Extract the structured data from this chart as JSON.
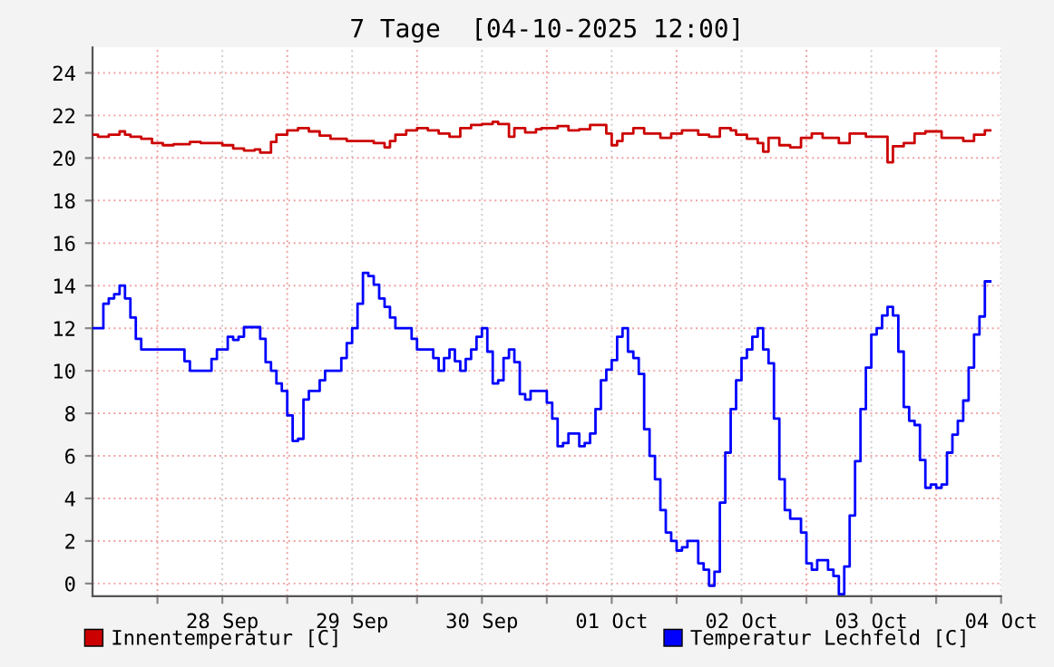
{
  "chart_data": {
    "type": "step",
    "title": "7 Tage  [04-10-2025 12:00]",
    "xlim": [
      "2025-09-27T12:00",
      "2025-10-04T12:00"
    ],
    "xticks": [
      {
        "value": "2025-09-28T00:00",
        "label": null
      },
      {
        "value": "2025-09-28T12:00",
        "label": "28 Sep"
      },
      {
        "value": "2025-09-29T00:00",
        "label": null
      },
      {
        "value": "2025-09-29T12:00",
        "label": "29 Sep"
      },
      {
        "value": "2025-09-30T00:00",
        "label": null
      },
      {
        "value": "2025-09-30T12:00",
        "label": "30 Sep"
      },
      {
        "value": "2025-10-01T00:00",
        "label": null
      },
      {
        "value": "2025-10-01T12:00",
        "label": "01 Oct"
      },
      {
        "value": "2025-10-02T00:00",
        "label": null
      },
      {
        "value": "2025-10-02T12:00",
        "label": "02 Oct"
      },
      {
        "value": "2025-10-03T00:00",
        "label": null
      },
      {
        "value": "2025-10-03T12:00",
        "label": "03 Oct"
      },
      {
        "value": "2025-10-04T00:00",
        "label": null
      },
      {
        "value": "2025-10-04T12:00",
        "label": "04 Oct"
      }
    ],
    "ylim": [
      -0.6,
      25.2
    ],
    "yticks": [
      0,
      2,
      4,
      6,
      8,
      10,
      12,
      14,
      16,
      18,
      20,
      22,
      24
    ],
    "grid": true,
    "legend": "bottom",
    "series": [
      {
        "name": "Innentemperatur [C]",
        "color": "#cc0000",
        "x": [
          "2025-09-27T12:00",
          "2025-09-27T13:00",
          "2025-09-27T15:00",
          "2025-09-27T17:00",
          "2025-09-27T18:00",
          "2025-09-27T19:00",
          "2025-09-27T21:00",
          "2025-09-27T23:00",
          "2025-09-28T01:00",
          "2025-09-28T03:00",
          "2025-09-28T06:00",
          "2025-09-28T08:00",
          "2025-09-28T12:00",
          "2025-09-28T14:00",
          "2025-09-28T16:00",
          "2025-09-28T18:00",
          "2025-09-28T19:00",
          "2025-09-28T21:00",
          "2025-09-28T22:00",
          "2025-09-29T00:00",
          "2025-09-29T02:00",
          "2025-09-29T04:00",
          "2025-09-29T06:00",
          "2025-09-29T08:00",
          "2025-09-29T11:00",
          "2025-09-29T16:00",
          "2025-09-29T18:00",
          "2025-09-29T19:00",
          "2025-09-29T20:00",
          "2025-09-29T22:00",
          "2025-09-30T00:00",
          "2025-09-30T02:00",
          "2025-09-30T04:00",
          "2025-09-30T06:00",
          "2025-09-30T08:00",
          "2025-09-30T10:00",
          "2025-09-30T12:00",
          "2025-09-30T14:00",
          "2025-09-30T15:00",
          "2025-09-30T17:00",
          "2025-09-30T18:00",
          "2025-09-30T20:00",
          "2025-09-30T22:00",
          "2025-09-30T23:00",
          "2025-10-01T02:00",
          "2025-10-01T04:00",
          "2025-10-01T06:00",
          "2025-10-01T08:00",
          "2025-10-01T11:00",
          "2025-10-01T12:00",
          "2025-10-01T13:00",
          "2025-10-01T14:00",
          "2025-10-01T16:00",
          "2025-10-01T18:00",
          "2025-10-01T21:00",
          "2025-10-01T23:00",
          "2025-10-02T01:00",
          "2025-10-02T04:00",
          "2025-10-02T06:00",
          "2025-10-02T08:00",
          "2025-10-02T10:00",
          "2025-10-02T11:00",
          "2025-10-02T13:00",
          "2025-10-02T15:00",
          "2025-10-02T16:00",
          "2025-10-02T17:00",
          "2025-10-02T19:00",
          "2025-10-02T21:00",
          "2025-10-02T23:00",
          "2025-10-03T01:00",
          "2025-10-03T03:00",
          "2025-10-03T06:00",
          "2025-10-03T08:00",
          "2025-10-03T11:00",
          "2025-10-03T15:00",
          "2025-10-03T16:00",
          "2025-10-03T18:00",
          "2025-10-03T20:00",
          "2025-10-03T22:00",
          "2025-10-04T01:00",
          "2025-10-04T05:00",
          "2025-10-04T07:00",
          "2025-10-04T09:00",
          "2025-10-04T10:00"
        ],
        "values": [
          21.1,
          21.0,
          21.1,
          21.25,
          21.1,
          21.0,
          20.9,
          20.7,
          20.6,
          20.65,
          20.75,
          20.7,
          20.6,
          20.45,
          20.35,
          20.4,
          20.25,
          20.75,
          21.1,
          21.3,
          21.4,
          21.25,
          21.05,
          20.9,
          20.8,
          20.7,
          20.5,
          20.8,
          21.1,
          21.3,
          21.4,
          21.3,
          21.15,
          21.0,
          21.4,
          21.55,
          21.6,
          21.7,
          21.6,
          21.0,
          21.4,
          21.2,
          21.35,
          21.4,
          21.5,
          21.3,
          21.35,
          21.55,
          21.15,
          20.6,
          20.8,
          21.15,
          21.4,
          21.15,
          20.95,
          21.15,
          21.3,
          21.1,
          21.0,
          21.4,
          21.3,
          21.1,
          20.9,
          20.7,
          20.3,
          20.95,
          20.6,
          20.5,
          20.95,
          21.15,
          20.95,
          20.7,
          21.15,
          21.0,
          19.8,
          20.55,
          20.7,
          21.15,
          21.25,
          20.95,
          20.8,
          21.1,
          21.3,
          21.3
        ]
      },
      {
        "name": "Temperatur Lechfeld [C]",
        "color": "#0000ff",
        "x": [
          "2025-09-27T12:00",
          "2025-09-27T14:00",
          "2025-09-27T15:00",
          "2025-09-27T16:00",
          "2025-09-27T17:00",
          "2025-09-27T18:00",
          "2025-09-27T19:00",
          "2025-09-27T20:00",
          "2025-09-27T21:00",
          "2025-09-28T05:00",
          "2025-09-28T06:00",
          "2025-09-28T10:00",
          "2025-09-28T11:00",
          "2025-09-28T13:00",
          "2025-09-28T14:00",
          "2025-09-28T15:00",
          "2025-09-28T16:00",
          "2025-09-28T19:00",
          "2025-09-28T20:00",
          "2025-09-28T21:00",
          "2025-09-28T22:00",
          "2025-09-28T23:00",
          "2025-09-29T00:00",
          "2025-09-29T01:00",
          "2025-09-29T02:00",
          "2025-09-29T03:00",
          "2025-09-29T04:00",
          "2025-09-29T06:00",
          "2025-09-29T07:00",
          "2025-09-29T10:00",
          "2025-09-29T11:00",
          "2025-09-29T12:00",
          "2025-09-29T13:00",
          "2025-09-29T14:00",
          "2025-09-29T15:00",
          "2025-09-29T16:00",
          "2025-09-29T17:00",
          "2025-09-29T18:00",
          "2025-09-29T19:00",
          "2025-09-29T20:00",
          "2025-09-29T23:00",
          "2025-09-30T00:00",
          "2025-09-30T03:00",
          "2025-09-30T04:00",
          "2025-09-30T05:00",
          "2025-09-30T06:00",
          "2025-09-30T07:00",
          "2025-09-30T08:00",
          "2025-09-30T09:00",
          "2025-09-30T10:00",
          "2025-09-30T11:00",
          "2025-09-30T12:00",
          "2025-09-30T13:00",
          "2025-09-30T14:00",
          "2025-09-30T15:00",
          "2025-09-30T16:00",
          "2025-09-30T17:00",
          "2025-09-30T18:00",
          "2025-09-30T19:00",
          "2025-09-30T20:00",
          "2025-09-30T21:00",
          "2025-10-01T00:00",
          "2025-10-01T01:00",
          "2025-10-01T02:00",
          "2025-10-01T03:00",
          "2025-10-01T04:00",
          "2025-10-01T06:00",
          "2025-10-01T07:00",
          "2025-10-01T08:00",
          "2025-10-01T09:00",
          "2025-10-01T10:00",
          "2025-10-01T11:00",
          "2025-10-01T12:00",
          "2025-10-01T13:00",
          "2025-10-01T14:00",
          "2025-10-01T15:00",
          "2025-10-01T16:00",
          "2025-10-01T17:00",
          "2025-10-01T18:00",
          "2025-10-01T19:00",
          "2025-10-01T20:00",
          "2025-10-01T21:00",
          "2025-10-01T22:00",
          "2025-10-01T23:00",
          "2025-10-02T00:00",
          "2025-10-02T01:00",
          "2025-10-02T02:00",
          "2025-10-02T04:00",
          "2025-10-02T05:00",
          "2025-10-02T06:00",
          "2025-10-02T07:00",
          "2025-10-02T08:00",
          "2025-10-02T09:00",
          "2025-10-02T10:00",
          "2025-10-02T11:00",
          "2025-10-02T12:00",
          "2025-10-02T13:00",
          "2025-10-02T14:00",
          "2025-10-02T15:00",
          "2025-10-02T16:00",
          "2025-10-02T17:00",
          "2025-10-02T18:00",
          "2025-10-02T19:00",
          "2025-10-02T20:00",
          "2025-10-02T21:00",
          "2025-10-02T23:00",
          "2025-10-03T00:00",
          "2025-10-03T01:00",
          "2025-10-03T02:00",
          "2025-10-03T04:00",
          "2025-10-03T05:00",
          "2025-10-03T06:00",
          "2025-10-03T07:00",
          "2025-10-03T08:00",
          "2025-10-03T09:00",
          "2025-10-03T10:00",
          "2025-10-03T11:00",
          "2025-10-03T12:00",
          "2025-10-03T13:00",
          "2025-10-03T14:00",
          "2025-10-03T15:00",
          "2025-10-03T16:00",
          "2025-10-03T17:00",
          "2025-10-03T18:00",
          "2025-10-03T19:00",
          "2025-10-03T20:00",
          "2025-10-03T21:00",
          "2025-10-03T22:00",
          "2025-10-03T23:00",
          "2025-10-04T00:00",
          "2025-10-04T01:00",
          "2025-10-04T02:00",
          "2025-10-04T03:00",
          "2025-10-04T04:00",
          "2025-10-04T05:00",
          "2025-10-04T06:00",
          "2025-10-04T07:00",
          "2025-10-04T08:00",
          "2025-10-04T09:00",
          "2025-10-04T10:00"
        ],
        "values": [
          12.0,
          13.15,
          13.4,
          13.6,
          14.0,
          13.4,
          12.5,
          11.5,
          11.0,
          10.45,
          10.0,
          10.55,
          11.0,
          11.6,
          11.45,
          11.6,
          12.05,
          11.5,
          10.4,
          10.0,
          9.4,
          9.05,
          7.9,
          6.7,
          6.8,
          8.65,
          9.05,
          9.55,
          10.0,
          10.6,
          11.3,
          12.0,
          13.15,
          14.6,
          14.45,
          14.05,
          13.4,
          13.0,
          12.5,
          12.0,
          11.5,
          11.0,
          10.6,
          10.0,
          10.6,
          11.0,
          10.45,
          10.0,
          10.55,
          11.0,
          11.6,
          12.0,
          10.9,
          9.4,
          9.55,
          10.6,
          11.0,
          10.4,
          8.9,
          8.65,
          9.05,
          8.5,
          7.75,
          6.45,
          6.6,
          7.05,
          6.45,
          6.6,
          7.05,
          8.2,
          9.55,
          10.05,
          10.5,
          11.6,
          12.0,
          10.9,
          10.6,
          9.85,
          7.25,
          6.0,
          4.9,
          3.45,
          2.4,
          2.0,
          1.55,
          1.7,
          2.0,
          0.95,
          0.65,
          -0.1,
          0.55,
          3.8,
          6.15,
          8.2,
          9.55,
          10.6,
          11.0,
          11.6,
          12.0,
          11.0,
          10.35,
          7.75,
          4.9,
          3.45,
          3.05,
          2.4,
          0.95,
          0.65,
          1.1,
          0.65,
          0.35,
          -0.5,
          0.8,
          3.2,
          5.75,
          8.2,
          10.15,
          11.7,
          12.0,
          12.6,
          13.0,
          12.6,
          10.9,
          8.3,
          7.65,
          7.45,
          5.8,
          4.5,
          4.65,
          4.5,
          4.65,
          6.15,
          7.0,
          7.65,
          8.6,
          10.15,
          11.7,
          12.55,
          14.2,
          14.2
        ]
      }
    ]
  }
}
